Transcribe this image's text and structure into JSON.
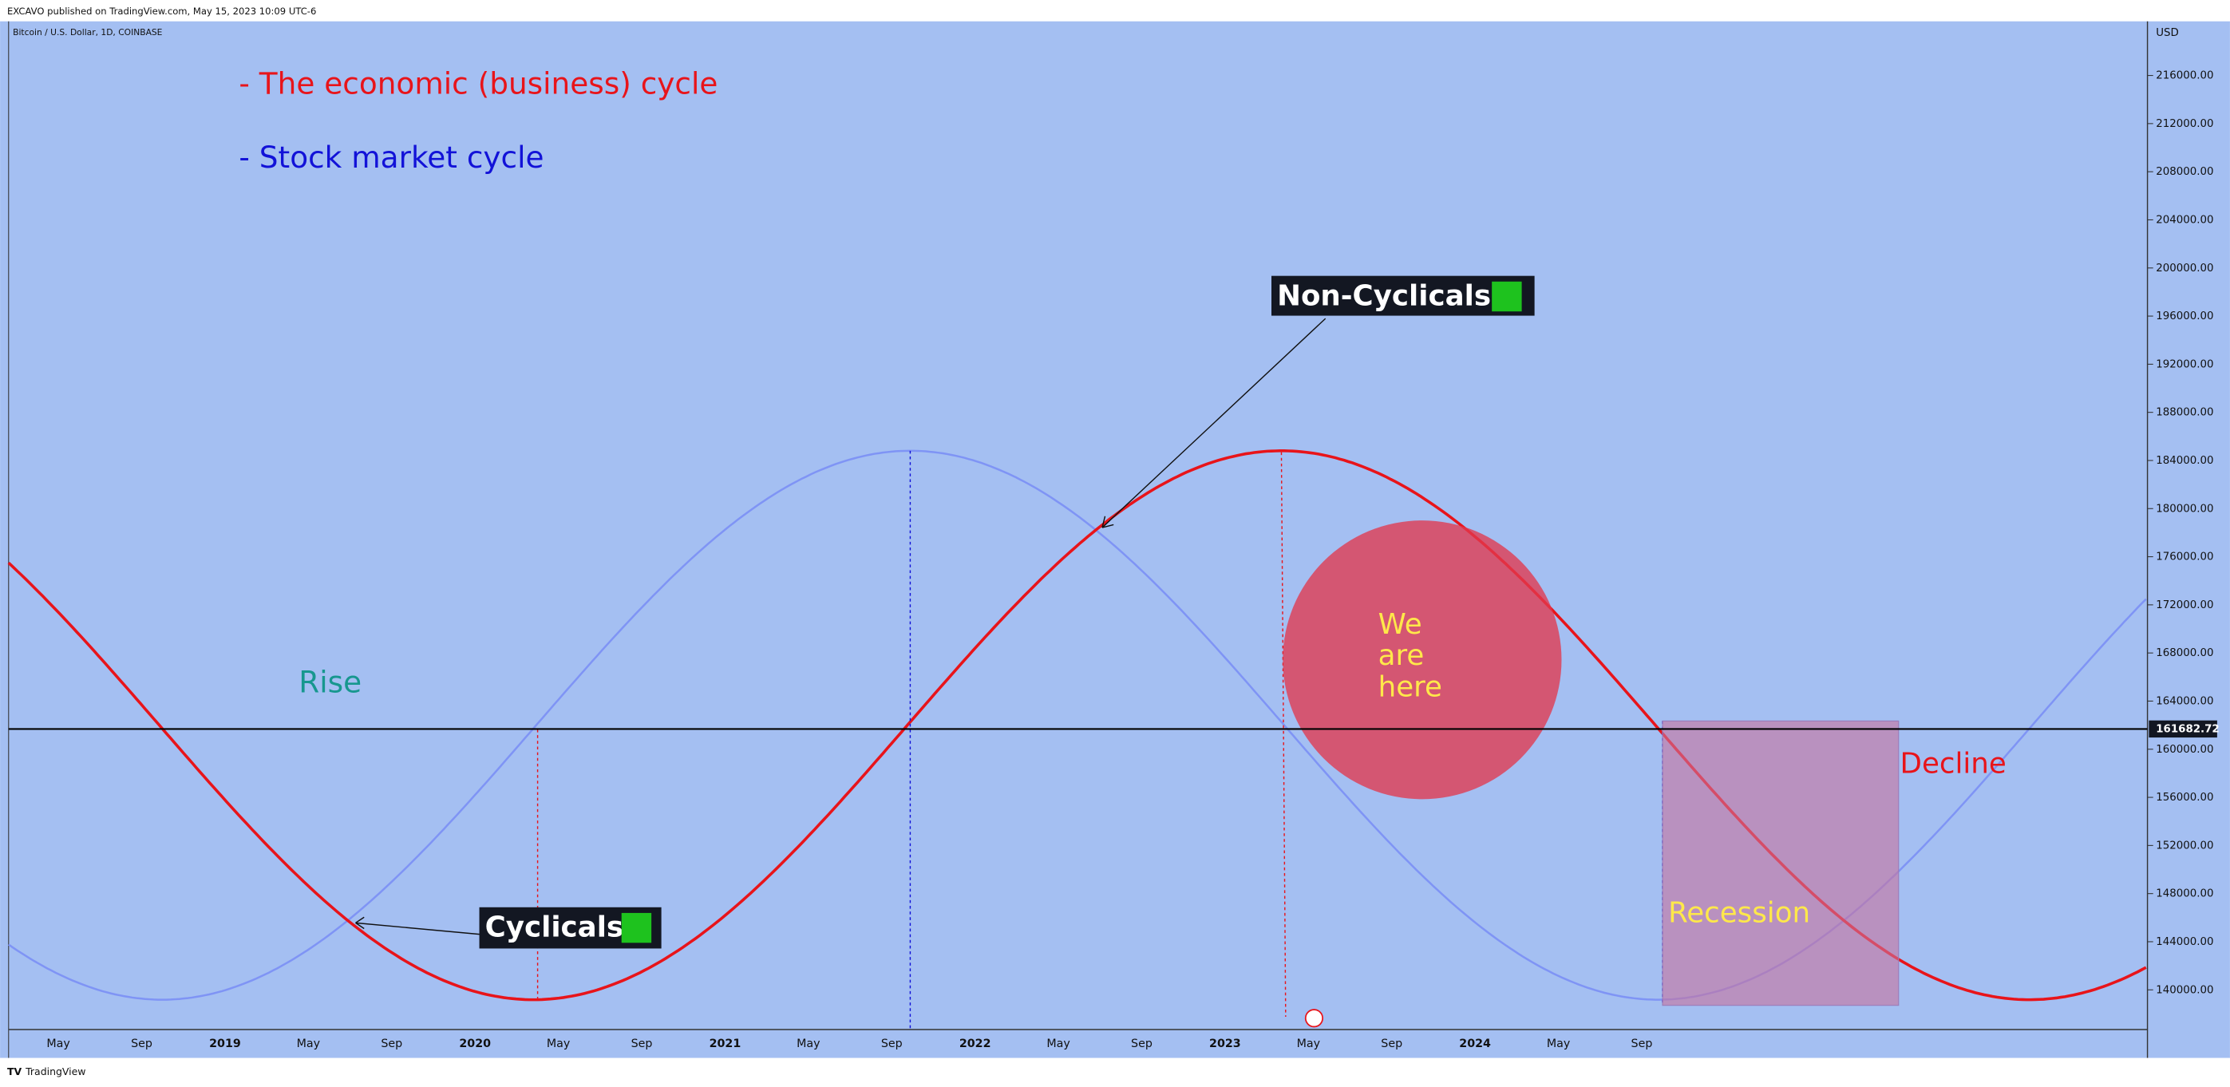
{
  "header": "EXCAVO published on TradingView.com, May 15, 2023 10:09 UTC-6",
  "footer": "TradingView",
  "chart_data": {
    "type": "line",
    "symbol": "Bitcoin / U.S. Dollar, 1D, COINBASE",
    "currency": "USD",
    "legend": [
      "- The economic (business) cycle",
      "- Stock market cycle"
    ],
    "annotations": {
      "non_cyclicals": "Non-Cyclicals",
      "cyclicals": "Cyclicals",
      "rise": "Rise",
      "decline": "Decline",
      "recession": "Recession",
      "we_are_here": [
        "We",
        "are",
        "here"
      ]
    },
    "categories": [
      "May",
      "Sep",
      "2019",
      "May",
      "Sep",
      "2020",
      "May",
      "Sep",
      "2021",
      "May",
      "Sep",
      "2022",
      "May",
      "Sep",
      "2023",
      "May",
      "Sep",
      "2024",
      "May",
      "Sep"
    ],
    "last_price": 161682.72,
    "ylim": [
      136700,
      220500
    ],
    "yticks": [
      {
        "value": 140000,
        "label": "140000.00"
      },
      {
        "value": 144000,
        "label": "144000.00"
      },
      {
        "value": 148000,
        "label": "148000.00"
      },
      {
        "value": 152000,
        "label": "152000.00"
      },
      {
        "value": 156000,
        "label": "156000.00"
      },
      {
        "value": 160000,
        "label": "160000.00"
      },
      {
        "value": 164000,
        "label": "164000.00"
      },
      {
        "value": 168000,
        "label": "168000.00"
      },
      {
        "value": 172000,
        "label": "172000.00"
      },
      {
        "value": 176000,
        "label": "176000.00"
      },
      {
        "value": 180000,
        "label": "180000.00"
      },
      {
        "value": 184000,
        "label": "184000.00"
      },
      {
        "value": 188000,
        "label": "188000.00"
      },
      {
        "value": 192000,
        "label": "192000.00"
      },
      {
        "value": 196000,
        "label": "196000.00"
      },
      {
        "value": 200000,
        "label": "200000.00"
      },
      {
        "value": 204000,
        "label": "204000.00"
      },
      {
        "value": 208000,
        "label": "208000.00"
      },
      {
        "value": 212000,
        "label": "212000.00"
      },
      {
        "value": 216000,
        "label": "216000.00"
      }
    ]
  }
}
